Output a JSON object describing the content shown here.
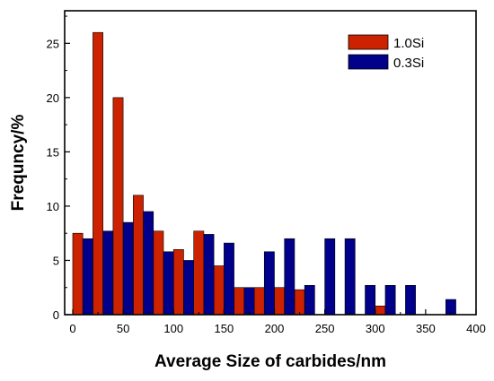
{
  "chart_data": {
    "type": "bar",
    "title": "",
    "xlabel": "Average Size of carbides/nm",
    "ylabel": "Frequncy/%",
    "xlim": [
      -8,
      400
    ],
    "ylim": [
      0,
      28
    ],
    "xticks": [
      0,
      50,
      100,
      150,
      200,
      250,
      300,
      350,
      400
    ],
    "yticks": [
      0,
      5,
      10,
      15,
      20,
      25
    ],
    "bin_width": 10,
    "grid": false,
    "legend": "top-right",
    "series": [
      {
        "name": "1.0Si",
        "color": "#cc2200",
        "points": [
          {
            "x": 5,
            "y": 7.5
          },
          {
            "x": 25,
            "y": 26
          },
          {
            "x": 45,
            "y": 20
          },
          {
            "x": 65,
            "y": 11
          },
          {
            "x": 85,
            "y": 7.7
          },
          {
            "x": 105,
            "y": 6
          },
          {
            "x": 125,
            "y": 7.7
          },
          {
            "x": 145,
            "y": 4.5
          },
          {
            "x": 165,
            "y": 2.5
          },
          {
            "x": 185,
            "y": 2.5
          },
          {
            "x": 205,
            "y": 2.5
          },
          {
            "x": 225,
            "y": 2.3
          },
          {
            "x": 305,
            "y": 0.8
          }
        ]
      },
      {
        "name": "0.3Si",
        "color": "#00008b",
        "points": [
          {
            "x": 15,
            "y": 7
          },
          {
            "x": 35,
            "y": 7.7
          },
          {
            "x": 55,
            "y": 8.5
          },
          {
            "x": 75,
            "y": 9.5
          },
          {
            "x": 95,
            "y": 5.8
          },
          {
            "x": 115,
            "y": 5
          },
          {
            "x": 135,
            "y": 7.4
          },
          {
            "x": 155,
            "y": 6.6
          },
          {
            "x": 175,
            "y": 2.5
          },
          {
            "x": 195,
            "y": 5.8
          },
          {
            "x": 215,
            "y": 7
          },
          {
            "x": 235,
            "y": 2.7
          },
          {
            "x": 255,
            "y": 7
          },
          {
            "x": 275,
            "y": 7
          },
          {
            "x": 295,
            "y": 2.7
          },
          {
            "x": 315,
            "y": 2.7
          },
          {
            "x": 335,
            "y": 2.7
          },
          {
            "x": 375,
            "y": 1.4
          }
        ]
      }
    ]
  }
}
